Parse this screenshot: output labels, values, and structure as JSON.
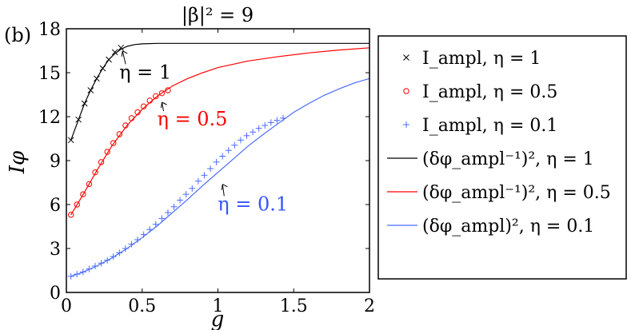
{
  "chart_data": {
    "type": "line",
    "title": "|β|² = 9",
    "panel_label": "(b)",
    "xlabel": "g",
    "ylabel": "Iφ",
    "xlim": [
      0,
      2
    ],
    "ylim": [
      0,
      18
    ],
    "xticks": [
      "0",
      "0.5",
      "1",
      "1.5",
      "2"
    ],
    "yticks": [
      "0",
      "3",
      "6",
      "9",
      "12",
      "15",
      "18"
    ],
    "grid": false,
    "legend_position": "right, outside",
    "series": [
      {
        "name": "I_ampl, η = 1",
        "kind": "markers",
        "marker": "x",
        "color": "#000000",
        "x": [
          0.03,
          0.08,
          0.12,
          0.16,
          0.2,
          0.24,
          0.28,
          0.32,
          0.36
        ],
        "y": [
          10.4,
          11.8,
          12.9,
          13.8,
          14.6,
          15.3,
          15.9,
          16.4,
          16.7
        ]
      },
      {
        "name": "I_ampl, η = 0.5",
        "kind": "markers",
        "marker": "circle",
        "color": "#ff0000",
        "x": [
          0.03,
          0.07,
          0.11,
          0.15,
          0.19,
          0.23,
          0.27,
          0.31,
          0.35,
          0.39,
          0.43,
          0.47,
          0.51,
          0.55,
          0.59,
          0.63,
          0.67
        ],
        "y": [
          5.3,
          6.0,
          6.7,
          7.4,
          8.2,
          8.9,
          9.6,
          10.2,
          10.8,
          11.4,
          11.9,
          12.3,
          12.7,
          13.1,
          13.4,
          13.6,
          13.8
        ]
      },
      {
        "name": "I_ampl, η = 0.1",
        "kind": "markers",
        "marker": "plus",
        "color": "#4a6cff",
        "x": [
          0.03,
          0.07,
          0.11,
          0.15,
          0.19,
          0.23,
          0.27,
          0.31,
          0.35,
          0.39,
          0.43,
          0.47,
          0.51,
          0.55,
          0.59,
          0.63,
          0.67,
          0.71,
          0.75,
          0.79,
          0.83,
          0.87,
          0.91,
          0.95,
          0.99,
          1.03,
          1.07,
          1.11,
          1.15,
          1.19,
          1.23,
          1.27,
          1.31,
          1.35,
          1.39,
          1.43
        ],
        "y": [
          1.1,
          1.25,
          1.4,
          1.6,
          1.8,
          2.0,
          2.2,
          2.45,
          2.7,
          3.0,
          3.3,
          3.6,
          3.95,
          4.3,
          4.65,
          5.05,
          5.45,
          5.85,
          6.3,
          6.7,
          7.1,
          7.6,
          8.0,
          8.45,
          8.9,
          9.3,
          9.7,
          10.05,
          10.4,
          10.7,
          10.95,
          11.2,
          11.4,
          11.6,
          11.75,
          11.9
        ]
      },
      {
        "name": "(δφ_ampl⁻¹)², η = 1",
        "kind": "line",
        "color": "#000000",
        "x": [
          0.03,
          0.08,
          0.12,
          0.16,
          0.2,
          0.24,
          0.28,
          0.32,
          0.36,
          0.4,
          0.45,
          0.5,
          0.6,
          0.7,
          0.8,
          1.0,
          1.5,
          2.0
        ],
        "y": [
          10.4,
          11.8,
          12.9,
          13.8,
          14.6,
          15.3,
          15.9,
          16.3,
          16.6,
          16.8,
          16.92,
          16.97,
          17.0,
          17.0,
          17.0,
          17.0,
          17.0,
          17.0
        ]
      },
      {
        "name": "(δφ_ampl⁻¹)², η = 0.5",
        "kind": "line",
        "color": "#ff0000",
        "x": [
          0.03,
          0.1,
          0.2,
          0.3,
          0.4,
          0.5,
          0.6,
          0.7,
          0.8,
          0.9,
          1.0,
          1.2,
          1.4,
          1.6,
          1.8,
          2.0
        ],
        "y": [
          5.3,
          6.5,
          8.3,
          10.0,
          11.4,
          12.5,
          13.4,
          14.1,
          14.6,
          15.0,
          15.35,
          15.8,
          16.1,
          16.35,
          16.55,
          16.7
        ]
      },
      {
        "name": "(δφ_ampl)², η = 0.1",
        "kind": "line",
        "color": "#4a6cff",
        "x": [
          0.03,
          0.1,
          0.2,
          0.3,
          0.4,
          0.5,
          0.6,
          0.7,
          0.8,
          0.9,
          1.0,
          1.1,
          1.2,
          1.3,
          1.4,
          1.5,
          1.6,
          1.7,
          1.8,
          1.9,
          2.0
        ],
        "y": [
          1.1,
          1.35,
          1.8,
          2.35,
          3.0,
          3.75,
          4.55,
          5.45,
          6.35,
          7.3,
          8.2,
          9.1,
          10.0,
          10.8,
          11.55,
          12.3,
          12.9,
          13.45,
          13.9,
          14.3,
          14.6
        ]
      }
    ],
    "annotations": [
      {
        "text": "η = 1",
        "color": "#000000",
        "arrow_x": 0.36,
        "arrow_y": 16.7,
        "text_x": 0.37,
        "text_y": 14.6
      },
      {
        "text": "η = 0.5",
        "color": "#ff0000",
        "arrow_x": 0.62,
        "arrow_y": 13.2,
        "text_x": 0.62,
        "text_y": 11.4
      },
      {
        "text": "η = 0.1",
        "color": "#3355ff",
        "arrow_x": 1.02,
        "arrow_y": 7.6,
        "text_x": 1.02,
        "text_y": 5.6
      }
    ]
  }
}
